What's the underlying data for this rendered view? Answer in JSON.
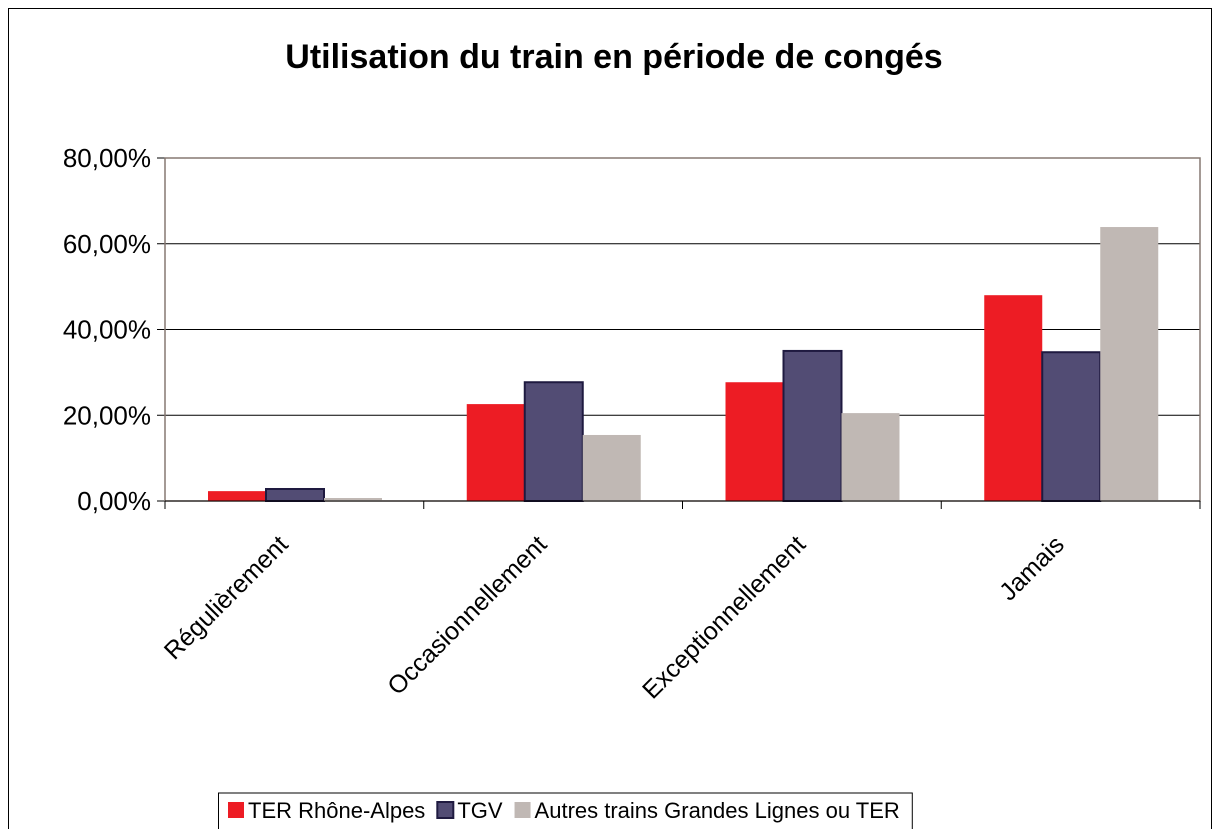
{
  "chart_data": {
    "type": "bar",
    "title": "Utilisation du train en période de congés",
    "categories": [
      "Régulièrement",
      "Occasionnellement",
      "Exceptionnellement",
      "Jamais"
    ],
    "series": [
      {
        "name": "TER Rhône-Alpes",
        "color": "#ed1c24",
        "values": [
          2.3,
          22.6,
          27.7,
          48.0
        ]
      },
      {
        "name": "TGV",
        "color": "#524c74",
        "values": [
          2.8,
          27.7,
          35.0,
          34.7
        ]
      },
      {
        "name": "Autres trains Grandes Lignes ou TER",
        "color": "#c0b8b4",
        "values": [
          0.7,
          15.4,
          20.5,
          63.9
        ]
      }
    ],
    "ylim": [
      0,
      80
    ],
    "yticks": [
      {
        "value": 0,
        "label": "0,00%"
      },
      {
        "value": 20,
        "label": "20,00%"
      },
      {
        "value": 40,
        "label": "40,00%"
      },
      {
        "value": 60,
        "label": "60,00%"
      },
      {
        "value": 80,
        "label": "80,00%"
      }
    ],
    "grid": true,
    "legend": "bottom"
  }
}
